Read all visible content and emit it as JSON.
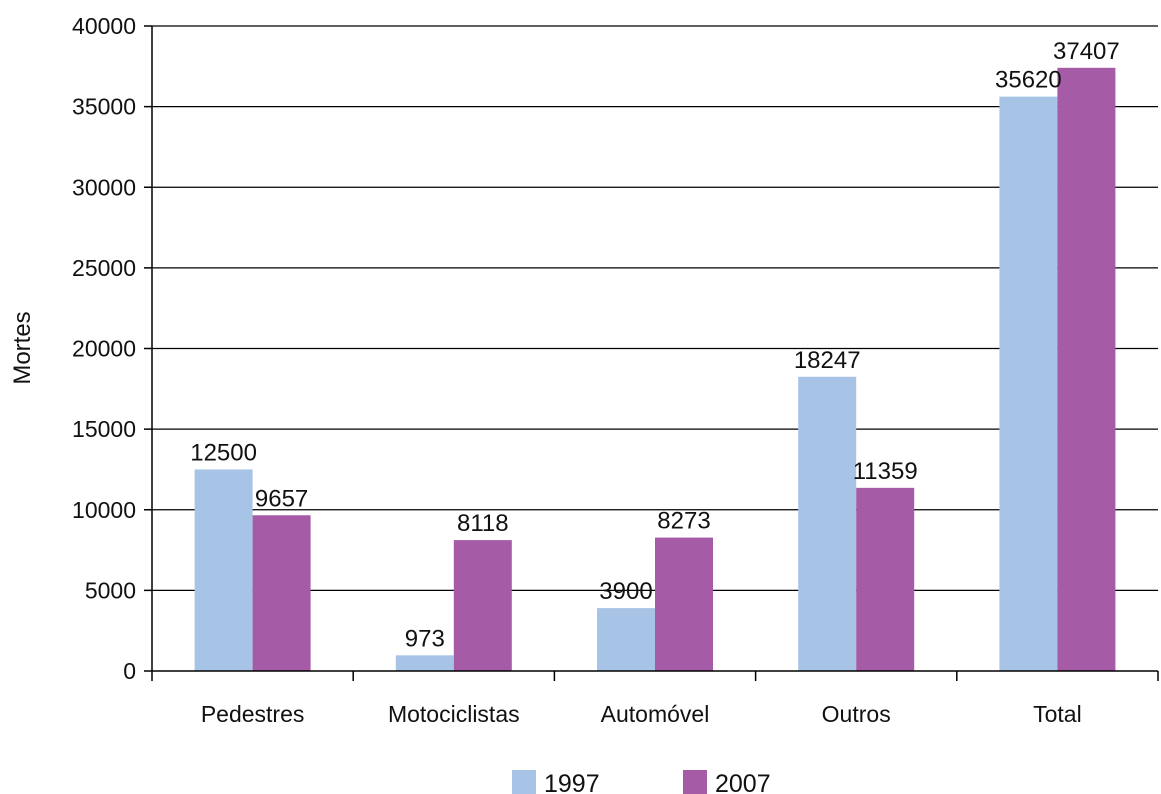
{
  "chart_data": {
    "type": "bar",
    "title": "",
    "xlabel": "",
    "ylabel": "Mortes",
    "ylim": [
      0,
      40000
    ],
    "yticks": [
      0,
      5000,
      10000,
      15000,
      20000,
      25000,
      30000,
      35000,
      40000
    ],
    "grid": true,
    "legend_position": "bottom",
    "categories": [
      "Pedestres",
      "Motociclistas",
      "Automóvel",
      "Outros",
      "Total"
    ],
    "series": [
      {
        "name": "1997",
        "color": "#a7c4e6",
        "values": [
          12500,
          973,
          3900,
          18247,
          35620
        ]
      },
      {
        "name": "2007",
        "color": "#a55ba5",
        "values": [
          9657,
          8118,
          8273,
          11359,
          37407
        ]
      }
    ]
  }
}
